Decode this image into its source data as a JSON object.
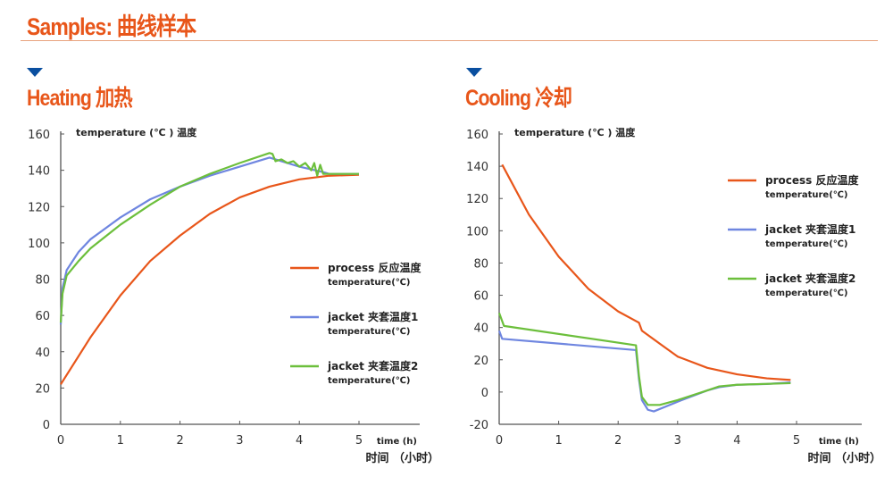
{
  "title": "Samples: 曲线样本",
  "chart_data": [
    {
      "type": "line",
      "title": "Heating 加热",
      "ylabel": "temperature (℃ ) 温度",
      "xlabel": "time (h)",
      "xlabel2": "时间 （小时）",
      "xlim": [
        0,
        5
      ],
      "ylim": [
        0,
        160
      ],
      "xticks": [
        0,
        1,
        2,
        3,
        4,
        5
      ],
      "yticks": [
        0,
        20,
        40,
        60,
        80,
        100,
        120,
        140,
        160
      ],
      "legend": "right",
      "series": [
        {
          "name": "process 反应温度",
          "name2": "temperature(℃)",
          "color": "#e8561a",
          "x": [
            0,
            0.5,
            1,
            1.5,
            2,
            2.5,
            3,
            3.5,
            4,
            4.5,
            5
          ],
          "y": [
            22,
            48,
            71,
            90,
            104,
            116,
            125,
            131,
            135,
            137,
            137.5
          ]
        },
        {
          "name": "jacket 夹套温度1",
          "name2": "temperature(℃)",
          "color": "#6f86e0",
          "x": [
            0,
            0.03,
            0.1,
            0.3,
            0.5,
            1,
            1.5,
            2,
            2.5,
            3,
            3.5,
            3.6,
            4,
            4.4,
            4.5,
            5
          ],
          "y": [
            55,
            75,
            85,
            95,
            102,
            114,
            124,
            131,
            137,
            142,
            147,
            146,
            142,
            139,
            138,
            138
          ]
        },
        {
          "name": "jacket 夹套温度2",
          "name2": "temperature(℃)",
          "color": "#6cbf3c",
          "x": [
            0,
            0.03,
            0.1,
            0.3,
            0.5,
            1,
            1.5,
            2,
            2.5,
            3,
            3.5,
            3.55,
            3.6,
            3.7,
            3.8,
            3.9,
            4,
            4.1,
            4.2,
            4.25,
            4.3,
            4.35,
            4.4,
            4.45,
            5
          ],
          "y": [
            56,
            72,
            82,
            90,
            97,
            110,
            121,
            131,
            138,
            144,
            149.5,
            149,
            145,
            146,
            144,
            145,
            142,
            144,
            140,
            144,
            137,
            143,
            138,
            138,
            138
          ]
        }
      ]
    },
    {
      "type": "line",
      "title": "Cooling 冷却",
      "ylabel": "temperature (℃ ) 温度",
      "xlabel": "time (h)",
      "xlabel2": "时间 （小时）",
      "xlim": [
        0,
        5
      ],
      "ylim": [
        -20,
        160
      ],
      "xticks": [
        0,
        1,
        2,
        3,
        4,
        5
      ],
      "yticks": [
        -20,
        0,
        20,
        40,
        60,
        80,
        100,
        120,
        140,
        160
      ],
      "legend": "top-right",
      "series": [
        {
          "name": "process 反应温度",
          "name2": "temperature(℃)",
          "color": "#e8561a",
          "x": [
            0.05,
            0.5,
            1,
            1.5,
            2,
            2.3,
            2.35,
            2.4,
            2.7,
            3,
            3.5,
            4,
            4.5,
            4.9
          ],
          "y": [
            141,
            110,
            84,
            64,
            50,
            44,
            43,
            38,
            30,
            22,
            15,
            11,
            8.5,
            7.5
          ]
        },
        {
          "name": "jacket 夹套温度1",
          "name2": "temperature(℃)",
          "color": "#6f86e0",
          "x": [
            0,
            0.05,
            2.3,
            2.35,
            2.4,
            2.5,
            2.6,
            3,
            3.5,
            3.7,
            4,
            4.5,
            4.9
          ],
          "y": [
            38,
            33,
            26,
            8,
            -5,
            -11,
            -12,
            -6,
            1,
            3,
            4.5,
            5,
            6
          ]
        },
        {
          "name": "jacket 夹套温度2",
          "name2": "temperature(℃)",
          "color": "#6cbf3c",
          "x": [
            0,
            0.08,
            2.3,
            2.35,
            2.4,
            2.5,
            2.7,
            3,
            3.5,
            3.7,
            4,
            4.9
          ],
          "y": [
            49,
            41,
            29,
            10,
            -3,
            -8,
            -8,
            -5,
            1,
            3.5,
            4.5,
            5.5
          ]
        }
      ]
    }
  ]
}
